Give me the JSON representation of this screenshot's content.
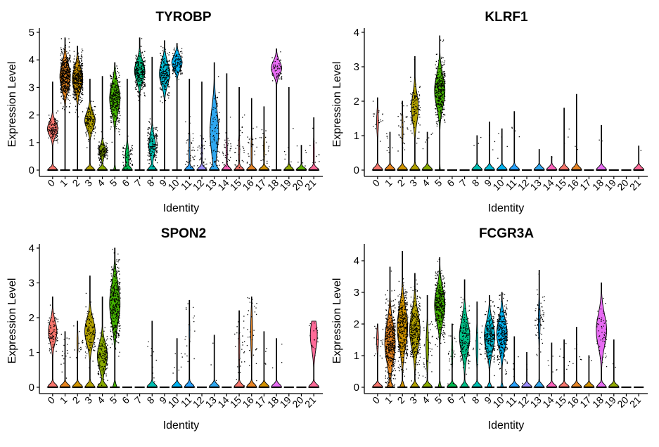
{
  "figure": {
    "type": "violin-grid",
    "colors": {
      "c0": "#F8766D",
      "c1": "#E7851E",
      "c2": "#D09400",
      "c3": "#B2A100",
      "c4": "#89AC00",
      "c5": "#45B500",
      "c6": "#00BC51",
      "c7": "#00C087",
      "c8": "#00C0B2",
      "c9": "#00BCD6",
      "c10": "#00B3F2",
      "c11": "#29A3FF",
      "c12": "#9C8DFF",
      "c13": "#2FA8F0",
      "c14": "#FF62BC",
      "c15": "#F8766D",
      "c16": "#E88526",
      "c17": "#D39200",
      "c18": "#E76BF3",
      "c19": "#93AA00",
      "c20": "#5EB300",
      "c21": "#FF6A98"
    }
  },
  "chart_data": [
    {
      "type": "violin",
      "title": "TYROBP",
      "xlabel": "Identity",
      "ylabel": "Expression Level",
      "ylim": [
        0,
        5
      ],
      "yticks": [
        "0",
        "1",
        "2",
        "3",
        "4",
        "5"
      ],
      "categories": [
        "0",
        "1",
        "2",
        "3",
        "4",
        "5",
        "6",
        "7",
        "8",
        "9",
        "10",
        "11",
        "12",
        "13",
        "14",
        "15",
        "16",
        "17",
        "18",
        "19",
        "20",
        "21"
      ],
      "max": [
        3.2,
        4.8,
        4.5,
        3.3,
        3.4,
        3.9,
        3.3,
        4.8,
        4.1,
        4.7,
        4.6,
        3.3,
        3.2,
        3.9,
        3.5,
        3.0,
        2.6,
        2.3,
        4.4,
        3.0,
        0.9,
        1.9
      ],
      "center": [
        1.5,
        3.4,
        3.3,
        1.8,
        0.7,
        2.6,
        0.5,
        3.6,
        0.9,
        3.5,
        3.9,
        0.7,
        0.7,
        1.4,
        0.7,
        0.7,
        0.7,
        0.8,
        3.7,
        0.5,
        0.5,
        0.6
      ],
      "spread": [
        0.25,
        0.45,
        0.4,
        0.3,
        0.2,
        0.5,
        0.3,
        0.35,
        0.35,
        0.4,
        0.25,
        0.6,
        0.5,
        0.8,
        0.5,
        0.5,
        0.5,
        0.5,
        0.25,
        0.6,
        0.3,
        0.5
      ],
      "zero_frac": [
        0.5,
        0.02,
        0.02,
        0.5,
        0.6,
        0.2,
        0.7,
        0.02,
        0.6,
        0.02,
        0.01,
        0.9,
        0.9,
        0.5,
        0.9,
        0.9,
        0.9,
        0.9,
        0.01,
        0.95,
        0.95,
        0.9
      ],
      "n": [
        120,
        480,
        420,
        140,
        120,
        300,
        60,
        260,
        160,
        200,
        130,
        40,
        30,
        90,
        35,
        30,
        25,
        20,
        55,
        10,
        6,
        10
      ]
    },
    {
      "type": "violin",
      "title": "KLRF1",
      "xlabel": "Identity",
      "ylabel": "Expression Level",
      "ylim": [
        0,
        4
      ],
      "yticks": [
        "0",
        "1",
        "2",
        "3",
        "4"
      ],
      "categories": [
        "0",
        "1",
        "2",
        "3",
        "4",
        "5",
        "6",
        "7",
        "8",
        "9",
        "10",
        "11",
        "12",
        "13",
        "14",
        "15",
        "16",
        "17",
        "18",
        "19",
        "20",
        "21"
      ],
      "max": [
        2.1,
        1.1,
        2.0,
        3.3,
        1.1,
        3.9,
        0,
        0,
        1.0,
        1.4,
        1.2,
        1.7,
        0,
        0.6,
        0.4,
        1.8,
        2.2,
        0,
        1.3,
        0,
        0,
        0.7
      ],
      "center": [
        1.4,
        0.8,
        1.2,
        1.8,
        0.8,
        2.3,
        0,
        0,
        0.8,
        0.9,
        0.8,
        1.2,
        0,
        0.5,
        0.3,
        1.1,
        1.0,
        0,
        1.1,
        0,
        0,
        0.6
      ],
      "spread": [
        0.3,
        0.2,
        0.4,
        0.4,
        0.2,
        0.45,
        0,
        0,
        0.1,
        0.3,
        0.3,
        0.3,
        0,
        0.1,
        0.1,
        0.4,
        0.5,
        0,
        0.2,
        0,
        0,
        0.1
      ],
      "zero_frac": [
        0.85,
        0.97,
        0.9,
        0.6,
        0.97,
        0.1,
        1,
        1,
        0.98,
        0.98,
        0.98,
        0.96,
        1,
        0.98,
        0.98,
        0.97,
        0.97,
        1,
        0.97,
        1,
        1,
        0.98
      ],
      "n": [
        18,
        8,
        30,
        110,
        6,
        320,
        0,
        0,
        3,
        3,
        4,
        4,
        0,
        2,
        1,
        3,
        2,
        0,
        2,
        0,
        0,
        1
      ]
    },
    {
      "type": "violin",
      "title": "SPON2",
      "xlabel": "Identity",
      "ylabel": "Expression Level",
      "ylim": [
        0,
        4
      ],
      "yticks": [
        "0",
        "1",
        "2",
        "3",
        "4"
      ],
      "categories": [
        "0",
        "1",
        "2",
        "3",
        "4",
        "5",
        "6",
        "7",
        "8",
        "9",
        "10",
        "11",
        "12",
        "13",
        "14",
        "15",
        "16",
        "17",
        "18",
        "19",
        "20",
        "21"
      ],
      "max": [
        2.6,
        1.6,
        1.9,
        3.2,
        2.6,
        4.0,
        0,
        0,
        1.9,
        0,
        1.4,
        2.5,
        0,
        1.5,
        0,
        2.2,
        2.6,
        1.6,
        1.4,
        0,
        0,
        1.9
      ],
      "center": [
        1.6,
        1.0,
        1.3,
        1.6,
        0.9,
        2.4,
        0,
        0,
        0.9,
        0,
        0.9,
        1.6,
        0,
        1.0,
        0,
        1.1,
        1.6,
        0.9,
        0.9,
        0,
        0,
        1.5
      ],
      "spread": [
        0.3,
        0.3,
        0.3,
        0.35,
        0.35,
        0.55,
        0,
        0,
        0.4,
        0,
        0.3,
        0.4,
        0,
        0.3,
        0,
        0.5,
        0.5,
        0.3,
        0.3,
        0,
        0,
        0.4
      ],
      "zero_frac": [
        0.55,
        0.95,
        0.9,
        0.5,
        0.5,
        0.3,
        1,
        1,
        0.95,
        1,
        0.97,
        0.93,
        1,
        0.98,
        1,
        0.9,
        0.85,
        0.98,
        0.98,
        1,
        1,
        0.6
      ],
      "n": [
        80,
        20,
        18,
        120,
        150,
        350,
        0,
        0,
        10,
        0,
        8,
        18,
        0,
        3,
        0,
        28,
        30,
        4,
        3,
        0,
        0,
        18
      ]
    },
    {
      "type": "violin",
      "title": "FCGR3A",
      "xlabel": "Identity",
      "ylabel": "Expression Level",
      "ylim": [
        0,
        4.4
      ],
      "yticks": [
        "0",
        "1",
        "2",
        "3",
        "4"
      ],
      "categories": [
        "0",
        "1",
        "2",
        "3",
        "4",
        "5",
        "6",
        "7",
        "8",
        "9",
        "10",
        "11",
        "12",
        "13",
        "14",
        "15",
        "16",
        "17",
        "18",
        "19",
        "20",
        "21"
      ],
      "max": [
        2.0,
        3.8,
        4.3,
        3.6,
        2.9,
        4.1,
        2.0,
        3.4,
        2.7,
        2.9,
        3.0,
        1.6,
        1.1,
        3.7,
        1.4,
        1.5,
        1.9,
        1.0,
        3.3,
        1.5,
        0,
        0
      ],
      "center": [
        1.5,
        1.4,
        1.9,
        1.8,
        1.3,
        2.6,
        1.1,
        1.6,
        1.3,
        1.6,
        1.7,
        0.9,
        0.5,
        2.1,
        0.8,
        1.0,
        1.1,
        0.8,
        1.8,
        0.9,
        0,
        0
      ],
      "spread": [
        0.3,
        0.6,
        0.6,
        0.55,
        0.5,
        0.5,
        0.4,
        0.5,
        0.45,
        0.45,
        0.45,
        0.3,
        0.2,
        0.5,
        0.3,
        0.3,
        0.4,
        0.2,
        0.5,
        0.3,
        0,
        0
      ],
      "zero_frac": [
        0.85,
        0.35,
        0.35,
        0.45,
        0.8,
        0.25,
        0.9,
        0.45,
        0.85,
        0.3,
        0.2,
        0.97,
        0.98,
        0.85,
        0.97,
        0.96,
        0.96,
        0.98,
        0.5,
        0.98,
        1,
        1
      ],
      "n": [
        20,
        420,
        380,
        320,
        35,
        330,
        25,
        170,
        14,
        260,
        270,
        4,
        4,
        60,
        6,
        8,
        6,
        2,
        60,
        2,
        0,
        0
      ]
    }
  ]
}
